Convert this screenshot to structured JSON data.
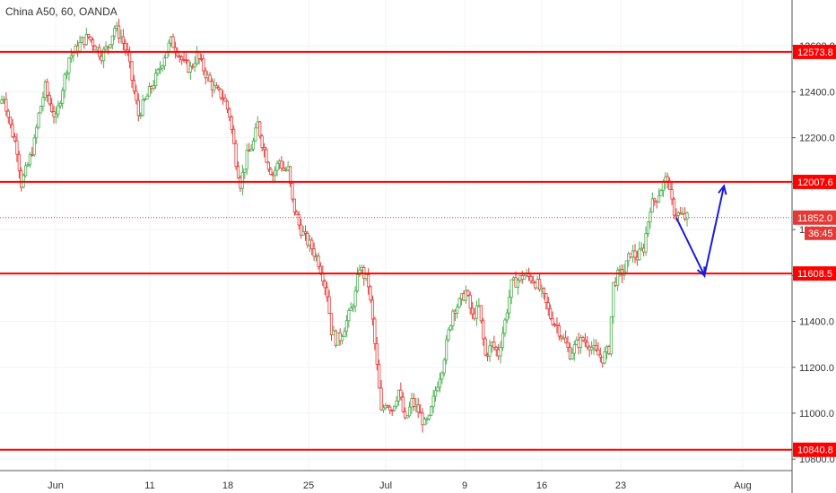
{
  "header": {
    "title": "China A50, 60, OANDA"
  },
  "colors": {
    "up_fill": "#ffffff",
    "up_wick": "#4caf50",
    "down_fill": "#ffffff",
    "down_wick": "#e53935",
    "level_line": "#ff0000",
    "current_line": "#e53935",
    "arrow": "#1a1adf",
    "grid": "#f0f3f7",
    "axis_text": "#333333"
  },
  "chart_data": {
    "type": "candlestick",
    "title": "China A50, 60, OANDA",
    "xlabel": "",
    "ylabel": "",
    "ylim": [
      10750,
      12800
    ],
    "grid": true,
    "y_ticks": [
      "12600.0",
      "12400.0",
      "12200.0",
      "12000.0",
      "11800.0",
      "11600.0",
      "11400.0",
      "11200.0",
      "11000.0",
      "10800.0"
    ],
    "x_ticks": [
      "Jun",
      "11",
      "18",
      "25",
      "Jul",
      "9",
      "16",
      "23",
      "Aug"
    ],
    "horizontal_levels": [
      {
        "label": "12573.8",
        "value": 12573.8
      },
      {
        "label": "12007.6",
        "value": 12007.6
      },
      {
        "label": "11608.5",
        "value": 11608.5
      },
      {
        "label": "10840.8",
        "value": 10840.8
      }
    ],
    "current_price": {
      "label": "11852.0",
      "value": 11852.0,
      "countdown": "36:45"
    },
    "price_path": [
      [
        0,
        12350
      ],
      [
        2,
        12380
      ],
      [
        5,
        12250
      ],
      [
        8,
        12150
      ],
      [
        10,
        12000
      ],
      [
        13,
        12080
      ],
      [
        16,
        12180
      ],
      [
        18,
        12300
      ],
      [
        21,
        12420
      ],
      [
        23,
        12350
      ],
      [
        26,
        12280
      ],
      [
        29,
        12420
      ],
      [
        32,
        12550
      ],
      [
        35,
        12580
      ],
      [
        38,
        12620
      ],
      [
        41,
        12640
      ],
      [
        44,
        12600
      ],
      [
        47,
        12560
      ],
      [
        50,
        12600
      ],
      [
        53,
        12680
      ],
      [
        56,
        12640
      ],
      [
        59,
        12560
      ],
      [
        62,
        12400
      ],
      [
        64,
        12300
      ],
      [
        67,
        12360
      ],
      [
        70,
        12420
      ],
      [
        73,
        12480
      ],
      [
        76,
        12560
      ],
      [
        79,
        12620
      ],
      [
        82,
        12580
      ],
      [
        85,
        12520
      ],
      [
        88,
        12500
      ],
      [
        91,
        12560
      ],
      [
        94,
        12500
      ],
      [
        97,
        12440
      ],
      [
        100,
        12400
      ],
      [
        103,
        12380
      ],
      [
        106,
        12300
      ],
      [
        109,
        12100
      ],
      [
        111,
        12000
      ],
      [
        114,
        12120
      ],
      [
        117,
        12180
      ],
      [
        119,
        12260
      ],
      [
        121,
        12180
      ],
      [
        124,
        12080
      ],
      [
        126,
        12040
      ],
      [
        129,
        12100
      ],
      [
        131,
        12060
      ],
      [
        133,
        12060
      ],
      [
        135,
        11920
      ],
      [
        138,
        11820
      ],
      [
        141,
        11760
      ],
      [
        144,
        11720
      ],
      [
        147,
        11660
      ],
      [
        149,
        11600
      ],
      [
        151,
        11520
      ],
      [
        153,
        11360
      ],
      [
        155,
        11320
      ],
      [
        157,
        11330
      ],
      [
        160,
        11400
      ],
      [
        162,
        11450
      ],
      [
        164,
        11520
      ],
      [
        166,
        11640
      ],
      [
        168,
        11600
      ],
      [
        170,
        11560
      ],
      [
        172,
        11400
      ],
      [
        174,
        11200
      ],
      [
        176,
        11000
      ],
      [
        178,
        11050
      ],
      [
        181,
        11020
      ],
      [
        184,
        11100
      ],
      [
        187,
        10960
      ],
      [
        190,
        11050
      ],
      [
        193,
        11010
      ],
      [
        196,
        10950
      ],
      [
        198,
        10970
      ],
      [
        201,
        11100
      ],
      [
        204,
        11200
      ],
      [
        206,
        11300
      ],
      [
        209,
        11450
      ],
      [
        212,
        11480
      ],
      [
        215,
        11530
      ],
      [
        218,
        11420
      ],
      [
        221,
        11460
      ],
      [
        224,
        11250
      ],
      [
        227,
        11300
      ],
      [
        230,
        11260
      ],
      [
        233,
        11400
      ],
      [
        236,
        11560
      ],
      [
        239,
        11580
      ],
      [
        242,
        11600
      ],
      [
        245,
        11590
      ],
      [
        248,
        11560
      ],
      [
        251,
        11500
      ],
      [
        254,
        11420
      ],
      [
        257,
        11380
      ],
      [
        260,
        11320
      ],
      [
        263,
        11260
      ],
      [
        266,
        11300
      ],
      [
        269,
        11320
      ],
      [
        272,
        11300
      ],
      [
        275,
        11260
      ],
      [
        278,
        11240
      ],
      [
        281,
        11280
      ],
      [
        283,
        11560
      ],
      [
        285,
        11600
      ],
      [
        288,
        11620
      ],
      [
        291,
        11700
      ],
      [
        294,
        11680
      ],
      [
        297,
        11720
      ],
      [
        300,
        11900
      ],
      [
        303,
        11940
      ],
      [
        306,
        12000
      ],
      [
        308,
        12030
      ],
      [
        309,
        11950
      ],
      [
        311,
        11880
      ],
      [
        314,
        11860
      ],
      [
        316,
        11852
      ]
    ],
    "arrow_path": [
      [
        311,
        11852
      ],
      [
        324,
        11600
      ],
      [
        333,
        11990
      ]
    ]
  }
}
